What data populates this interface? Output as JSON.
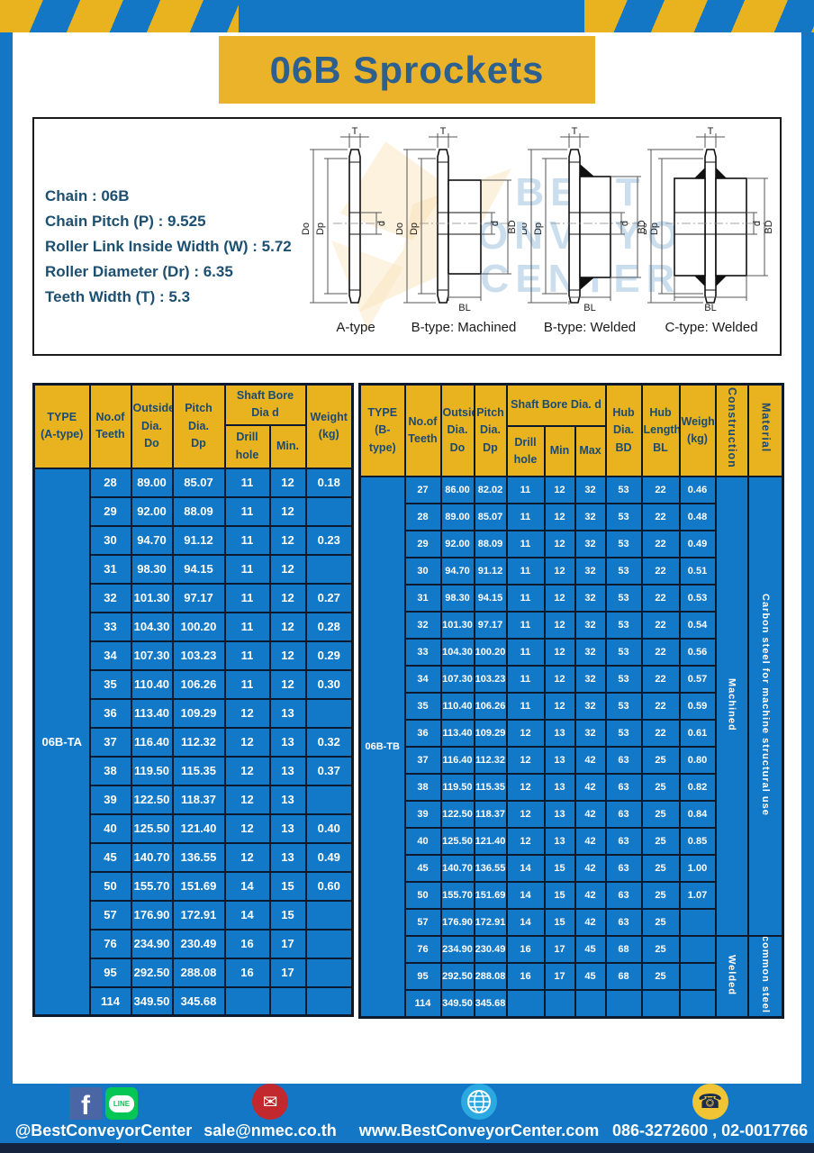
{
  "header": {
    "title": "06B Sprockets"
  },
  "specs": {
    "lines": [
      "Chain : 06B",
      "Chain Pitch (P) : 9.525",
      "Roller Link Inside Width (W) : 5.72",
      "Roller Diameter (Dr) : 6.35",
      "Teeth Width (T) : 5.3"
    ]
  },
  "diagram": {
    "captions": [
      "A-type",
      "B-type: Machined",
      "B-type: Welded",
      "C-type: Welded"
    ],
    "dims": {
      "t": "T",
      "do": "Do",
      "dp": "Dp",
      "d": "d",
      "bd": "BD",
      "bl": "BL"
    },
    "watermark": {
      "line1": "BEST",
      "line2": "CONVEYOR",
      "line3": "CENTER"
    }
  },
  "table_a": {
    "header": {
      "type": [
        "TYPE",
        "(A-type)"
      ],
      "teeth": [
        "No.of",
        "Teeth"
      ],
      "outside": [
        "Outside",
        "Dia.",
        "Do"
      ],
      "pitch": [
        "Pitch Dia.",
        "Dp"
      ],
      "shaft_bore": "Shaft Bore Dia d",
      "drill_hole": "Drill hole",
      "min": "Min.",
      "weight": [
        "Weight",
        "(kg)"
      ]
    },
    "type_label": "06B-TA",
    "rows": [
      [
        "28",
        "89.00",
        "85.07",
        "11",
        "12",
        "0.18"
      ],
      [
        "29",
        "92.00",
        "88.09",
        "11",
        "12",
        ""
      ],
      [
        "30",
        "94.70",
        "91.12",
        "11",
        "12",
        "0.23"
      ],
      [
        "31",
        "98.30",
        "94.15",
        "11",
        "12",
        ""
      ],
      [
        "32",
        "101.30",
        "97.17",
        "11",
        "12",
        "0.27"
      ],
      [
        "33",
        "104.30",
        "100.20",
        "11",
        "12",
        "0.28"
      ],
      [
        "34",
        "107.30",
        "103.23",
        "11",
        "12",
        "0.29"
      ],
      [
        "35",
        "110.40",
        "106.26",
        "11",
        "12",
        "0.30"
      ],
      [
        "36",
        "113.40",
        "109.29",
        "12",
        "13",
        ""
      ],
      [
        "37",
        "116.40",
        "112.32",
        "12",
        "13",
        "0.32"
      ],
      [
        "38",
        "119.50",
        "115.35",
        "12",
        "13",
        "0.37"
      ],
      [
        "39",
        "122.50",
        "118.37",
        "12",
        "13",
        ""
      ],
      [
        "40",
        "125.50",
        "121.40",
        "12",
        "13",
        "0.40"
      ],
      [
        "45",
        "140.70",
        "136.55",
        "12",
        "13",
        "0.49"
      ],
      [
        "50",
        "155.70",
        "151.69",
        "14",
        "15",
        "0.60"
      ],
      [
        "57",
        "176.90",
        "172.91",
        "14",
        "15",
        ""
      ],
      [
        "76",
        "234.90",
        "230.49",
        "16",
        "17",
        ""
      ],
      [
        "95",
        "292.50",
        "288.08",
        "16",
        "17",
        ""
      ],
      [
        "114",
        "349.50",
        "345.68",
        "",
        "",
        ""
      ]
    ]
  },
  "table_b": {
    "header": {
      "type": [
        "TYPE",
        "(B-type)"
      ],
      "teeth": [
        "No.of",
        "Teeth"
      ],
      "outside": [
        "Outside",
        "Dia.",
        "Do"
      ],
      "pitch": [
        "Pitch",
        "Dia.",
        "Dp"
      ],
      "shaft_bore": "Shaft Bore Dia.  d",
      "drill_hole": "Drill hole",
      "min": "Min",
      "max": "Max",
      "hub_dia": [
        "Hub",
        "Dia.",
        "BD"
      ],
      "hub_len": [
        "Hub",
        "Length",
        "BL"
      ],
      "weight": [
        "Weight",
        "(kg)"
      ],
      "construction": "Construction",
      "material": "Material"
    },
    "type_label": "06B-TB",
    "rows": [
      [
        "27",
        "86.00",
        "82.02",
        "11",
        "12",
        "32",
        "53",
        "22",
        "0.46"
      ],
      [
        "28",
        "89.00",
        "85.07",
        "11",
        "12",
        "32",
        "53",
        "22",
        "0.48"
      ],
      [
        "29",
        "92.00",
        "88.09",
        "11",
        "12",
        "32",
        "53",
        "22",
        "0.49"
      ],
      [
        "30",
        "94.70",
        "91.12",
        "11",
        "12",
        "32",
        "53",
        "22",
        "0.51"
      ],
      [
        "31",
        "98.30",
        "94.15",
        "11",
        "12",
        "32",
        "53",
        "22",
        "0.53"
      ],
      [
        "32",
        "101.30",
        "97.17",
        "11",
        "12",
        "32",
        "53",
        "22",
        "0.54"
      ],
      [
        "33",
        "104.30",
        "100.20",
        "11",
        "12",
        "32",
        "53",
        "22",
        "0.56"
      ],
      [
        "34",
        "107.30",
        "103.23",
        "11",
        "12",
        "32",
        "53",
        "22",
        "0.57"
      ],
      [
        "35",
        "110.40",
        "106.26",
        "11",
        "12",
        "32",
        "53",
        "22",
        "0.59"
      ],
      [
        "36",
        "113.40",
        "109.29",
        "12",
        "13",
        "32",
        "53",
        "22",
        "0.61"
      ],
      [
        "37",
        "116.40",
        "112.32",
        "12",
        "13",
        "42",
        "63",
        "25",
        "0.80"
      ],
      [
        "38",
        "119.50",
        "115.35",
        "12",
        "13",
        "42",
        "63",
        "25",
        "0.82"
      ],
      [
        "39",
        "122.50",
        "118.37",
        "12",
        "13",
        "42",
        "63",
        "25",
        "0.84"
      ],
      [
        "40",
        "125.50",
        "121.40",
        "12",
        "13",
        "42",
        "63",
        "25",
        "0.85"
      ],
      [
        "45",
        "140.70",
        "136.55",
        "14",
        "15",
        "42",
        "63",
        "25",
        "1.00"
      ],
      [
        "50",
        "155.70",
        "151.69",
        "14",
        "15",
        "42",
        "63",
        "25",
        "1.07"
      ],
      [
        "57",
        "176.90",
        "172.91",
        "14",
        "15",
        "42",
        "63",
        "25",
        ""
      ],
      [
        "76",
        "234.90",
        "230.49",
        "16",
        "17",
        "45",
        "68",
        "25",
        ""
      ],
      [
        "95",
        "292.50",
        "288.08",
        "16",
        "17",
        "45",
        "68",
        "25",
        ""
      ],
      [
        "114",
        "349.50",
        "345.68",
        "",
        "",
        "",
        "",
        "",
        ""
      ]
    ],
    "construction_groups": [
      {
        "label": "Machined",
        "rows": 17
      },
      {
        "label": "Welded",
        "rows": 3
      }
    ],
    "material_groups": [
      {
        "label": "Carbon steel for machine structural use",
        "rows": 17
      },
      {
        "label": "common steel",
        "rows": 3
      }
    ]
  },
  "footer": {
    "facebook_glyph": "f",
    "line_label": "LINE",
    "social_handle": "@BestConveyorCenter",
    "email": "sale@nmec.co.th",
    "website": "www.BestConveyorCenter.com",
    "phone": "086-3272600 , 02-0017766",
    "mail_glyph": "✉",
    "phone_glyph": "☎"
  },
  "colors": {
    "frame_blue": "#1377C5",
    "banner_gold": "#EBB32A",
    "header_gold": "#E9B320",
    "cell_blue": "#1278C8",
    "grid_navy": "#0C1A2E",
    "title_text": "#2D608F",
    "spec_text": "#1C4F70",
    "facebook_blue": "#4A66A5",
    "line_green": "#06C755",
    "email_red": "#C2292E",
    "globe_blue": "#2BA9E0",
    "phone_yellow": "#F0C435",
    "bottom_strip": "#15233F"
  }
}
